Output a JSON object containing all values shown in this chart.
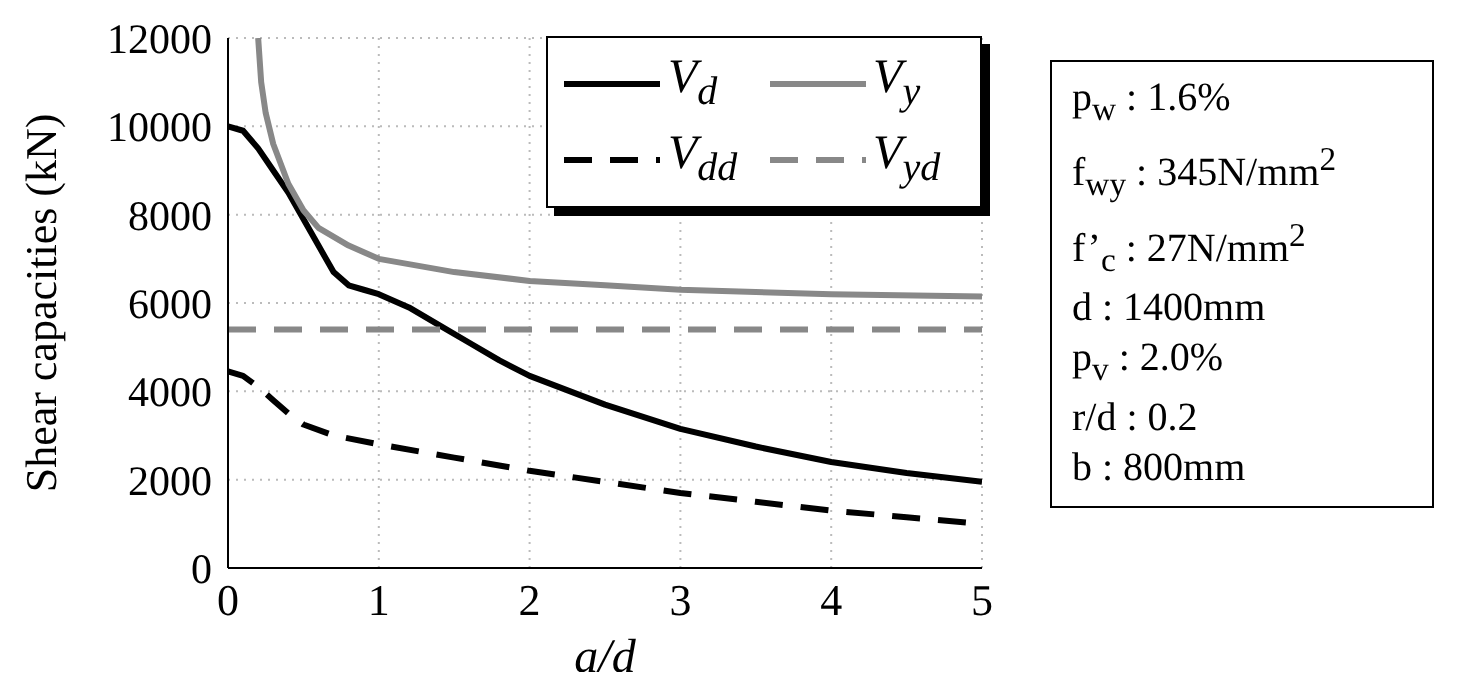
{
  "chart_data": {
    "type": "line",
    "xlabel": "a/d",
    "ylabel": "Shear capacities (kN)",
    "xlim": [
      0,
      5
    ],
    "xticks": [
      0,
      1,
      2,
      3,
      4,
      5
    ],
    "ylim": [
      0,
      12000
    ],
    "yticks": [
      0,
      2000,
      4000,
      6000,
      8000,
      10000,
      12000
    ],
    "grid": true,
    "legend": "top right",
    "marker": "none",
    "series": [
      {
        "name": "V$_{d}$",
        "color": "#000000",
        "line_style": "solid",
        "x": [
          0,
          0.1,
          0.2,
          0.3,
          0.4,
          0.5,
          0.6,
          0.7,
          0.8,
          0.9,
          1.0,
          1.2,
          1.4,
          1.6,
          1.8,
          2.0,
          2.5,
          3.0,
          3.5,
          4.0,
          4.5,
          5.0
        ],
        "values": [
          10000,
          9900,
          9500,
          9000,
          8500,
          7900,
          7300,
          6700,
          6400,
          6300,
          6200,
          5900,
          5500,
          5100,
          4700,
          4350,
          3700,
          3150,
          2750,
          2400,
          2150,
          1950
        ]
      },
      {
        "name": "V$_{y}$",
        "color": "#888888",
        "line_style": "solid",
        "x": [
          0.2,
          0.22,
          0.25,
          0.3,
          0.4,
          0.5,
          0.6,
          0.8,
          1.0,
          1.5,
          2.0,
          2.5,
          3.0,
          4.0,
          5.0
        ],
        "values": [
          12000,
          11000,
          10300,
          9600,
          8700,
          8100,
          7700,
          7300,
          7000,
          6700,
          6500,
          6400,
          6300,
          6200,
          6150
        ]
      },
      {
        "name": "V$_{dd}$",
        "color": "#000000",
        "line_style": "dashed",
        "x": [
          0,
          0.1,
          0.2,
          0.3,
          0.4,
          0.5,
          0.7,
          1.0,
          1.5,
          2.0,
          2.5,
          3.0,
          3.5,
          4.0,
          4.5,
          5.0
        ],
        "values": [
          4450,
          4350,
          4100,
          3800,
          3500,
          3250,
          3000,
          2800,
          2500,
          2200,
          1950,
          1700,
          1500,
          1300,
          1150,
          1000
        ]
      },
      {
        "name": "V$_{yd}$",
        "color": "#888888",
        "line_style": "dashed",
        "x": [
          0,
          5
        ],
        "values": [
          5400,
          5400
        ]
      }
    ],
    "annotations": [
      "p$_{w}$ : 1.6%",
      "f$_{wy}$ : 345N/mm$^{2}$",
      "f’$_{c}$ : 27N/mm$^{2}$",
      "d : 1400mm",
      "p$_{v}$ : 2.0%",
      "r/d : 0.2",
      "b : 800mm"
    ]
  }
}
